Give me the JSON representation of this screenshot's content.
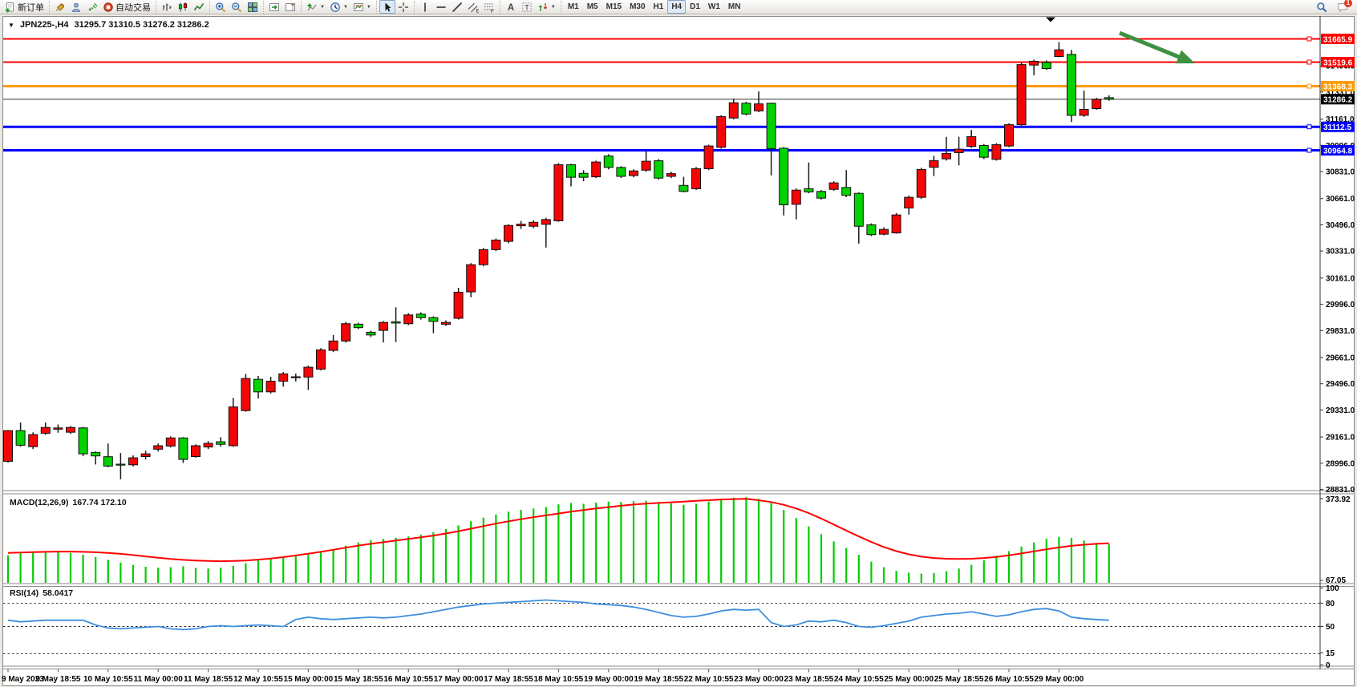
{
  "toolbar": {
    "active_timeframe": "H4",
    "notification_count": "1",
    "groups": [
      {
        "items": [
          {
            "name": "new-order-button",
            "icon": "doc-plus",
            "label": "新订单"
          }
        ]
      },
      {
        "items": [
          {
            "name": "chart-style-button",
            "icon": "bucket"
          },
          {
            "name": "profile-button",
            "icon": "profile"
          },
          {
            "name": "signals-button",
            "icon": "signal"
          },
          {
            "name": "auto-trading-button",
            "icon": "autotrade",
            "label": "自动交易"
          }
        ]
      },
      {
        "items": [
          {
            "name": "bar-chart-button",
            "icon": "bars"
          },
          {
            "name": "candle-chart-button",
            "icon": "candles"
          },
          {
            "name": "line-chart-button",
            "icon": "linechart"
          }
        ]
      },
      {
        "items": [
          {
            "name": "zoom-in-button",
            "icon": "zoom-in"
          },
          {
            "name": "zoom-out-button",
            "icon": "zoom-out"
          },
          {
            "name": "tile-windows-button",
            "icon": "tiles"
          }
        ]
      },
      {
        "items": [
          {
            "name": "auto-scroll-button",
            "icon": "autoscroll"
          },
          {
            "name": "chart-shift-button",
            "icon": "shift"
          }
        ]
      },
      {
        "items": [
          {
            "name": "indicators-button",
            "icon": "indicator",
            "dropdown": true
          },
          {
            "name": "periods-button",
            "icon": "clock",
            "dropdown": true
          },
          {
            "name": "templates-button",
            "icon": "template",
            "dropdown": true
          }
        ]
      },
      {
        "items": [
          {
            "name": "cursor-button",
            "icon": "cursor",
            "pressed": true
          },
          {
            "name": "crosshair-button",
            "icon": "crosshair"
          }
        ]
      },
      {
        "items": [
          {
            "name": "vertical-line-button",
            "icon": "vline"
          },
          {
            "name": "horizontal-line-button",
            "icon": "hline"
          },
          {
            "name": "trendline-button",
            "icon": "trend"
          },
          {
            "name": "channel-button",
            "icon": "channel"
          },
          {
            "name": "fibonacci-button",
            "icon": "fibo"
          }
        ]
      },
      {
        "items": [
          {
            "name": "text-button",
            "icon": "textA"
          },
          {
            "name": "text-label-button",
            "icon": "textT"
          },
          {
            "name": "arrows-button",
            "icon": "shapes",
            "dropdown": true
          }
        ]
      },
      {
        "timeframes": [
          "M1",
          "M5",
          "M15",
          "M30",
          "H1",
          "H4",
          "D1",
          "W1",
          "MN"
        ]
      }
    ],
    "right": [
      {
        "name": "search-button",
        "icon": "search"
      },
      {
        "name": "notifications-button",
        "icon": "comment",
        "badge": "1"
      }
    ]
  },
  "chart": {
    "collapse_arrow": "▼",
    "symbol_period": "JPN225-,H4",
    "ohlc_text": "31295.7 31310.5 31276.2 31286.2"
  },
  "chart_data": {
    "type": "candlestick",
    "symbol": "JPN225-",
    "period": "H4",
    "current_ohlc": {
      "open": 31295.7,
      "high": 31310.5,
      "low": 31276.2,
      "close": 31286.2
    },
    "colors": {
      "bull": "#f40606",
      "bear": "#02d102",
      "wick": "#1a1a1a",
      "rsi_line": "#3d8ede",
      "macd_hist": "#00cc00",
      "macd_signal": "#ff0000",
      "arrow": "#3f9142"
    },
    "price_axis_ticks": [
      "31496.0",
      "31331.0",
      "31161.0",
      "30996.0",
      "30831.0",
      "30661.0",
      "30496.0",
      "30331.0",
      "30161.0",
      "29996.0",
      "29831.0",
      "29661.0",
      "29496.0",
      "29331.0",
      "29161.0",
      "28996.0",
      "28831.0"
    ],
    "horizontal_lines": [
      {
        "price": 31665.9,
        "label": "31665.9",
        "color": "#fe0000",
        "width": 2
      },
      {
        "price": 31519.6,
        "label": "31519.6",
        "color": "#fe0000",
        "width": 2
      },
      {
        "price": 31368.3,
        "label": "31368.3",
        "color": "#ff9b00",
        "width": 3
      },
      {
        "price": 31112.5,
        "label": "31112.5",
        "color": "#0000fe",
        "width": 3
      },
      {
        "price": 30964.8,
        "label": "30964.8",
        "color": "#0000fe",
        "width": 3
      }
    ],
    "current_price_line": {
      "price": 31286.2,
      "label": "31286.2",
      "color": "#000000"
    },
    "time_labels": [
      "9 May 2023",
      "9 May 18:55",
      "10 May 10:55",
      "11 May 00:00",
      "11 May 18:55",
      "12 May 10:55",
      "15 May 00:00",
      "15 May 18:55",
      "16 May 10:55",
      "17 May 00:00",
      "17 May 18:55",
      "18 May 10:55",
      "19 May 00:00",
      "19 May 18:55",
      "22 May 10:55",
      "23 May 00:00",
      "23 May 18:55",
      "24 May 10:55",
      "25 May 00:00",
      "25 May 18:55",
      "26 May 10:55",
      "29 May 00:00"
    ],
    "candles": [
      [
        29008,
        29205,
        29000,
        29201
      ],
      [
        29201,
        29252,
        29100,
        29109
      ],
      [
        29100,
        29190,
        29085,
        29176
      ],
      [
        29184,
        29252,
        29175,
        29221
      ],
      [
        29210,
        29240,
        29188,
        29218
      ],
      [
        29191,
        29230,
        29180,
        29221
      ],
      [
        29218,
        29225,
        29040,
        29055
      ],
      [
        29064,
        29070,
        28988,
        29042
      ],
      [
        29037,
        29120,
        28970,
        28978
      ],
      [
        28990,
        29060,
        28895,
        28984
      ],
      [
        28986,
        29045,
        28975,
        29030
      ],
      [
        29038,
        29075,
        29020,
        29055
      ],
      [
        29084,
        29120,
        29070,
        29106
      ],
      [
        29104,
        29165,
        29095,
        29155
      ],
      [
        29155,
        29160,
        28998,
        29020
      ],
      [
        29038,
        29115,
        29030,
        29106
      ],
      [
        29098,
        29135,
        29085,
        29121
      ],
      [
        29131,
        29160,
        29100,
        29115
      ],
      [
        29106,
        29407,
        29100,
        29350
      ],
      [
        29327,
        29558,
        29320,
        29529
      ],
      [
        29524,
        29545,
        29403,
        29445
      ],
      [
        29445,
        29540,
        29435,
        29512
      ],
      [
        29512,
        29570,
        29478,
        29558
      ],
      [
        29535,
        29560,
        29510,
        29540
      ],
      [
        29538,
        29610,
        29457,
        29600
      ],
      [
        29588,
        29720,
        29580,
        29709
      ],
      [
        29706,
        29803,
        29695,
        29765
      ],
      [
        29765,
        29885,
        29755,
        29874
      ],
      [
        29871,
        29880,
        29840,
        29849
      ],
      [
        29820,
        29830,
        29790,
        29803
      ],
      [
        29832,
        29890,
        29756,
        29882
      ],
      [
        29885,
        29977,
        29758,
        29878
      ],
      [
        29874,
        29940,
        29865,
        29929
      ],
      [
        29934,
        29945,
        29900,
        29912
      ],
      [
        29912,
        29920,
        29814,
        29888
      ],
      [
        29870,
        29895,
        29860,
        29882
      ],
      [
        29908,
        30100,
        29900,
        30072
      ],
      [
        30074,
        30255,
        30040,
        30245
      ],
      [
        30245,
        30350,
        30235,
        30340
      ],
      [
        30340,
        30410,
        30330,
        30400
      ],
      [
        30392,
        30500,
        30380,
        30492
      ],
      [
        30490,
        30520,
        30470,
        30500
      ],
      [
        30487,
        30525,
        30475,
        30512
      ],
      [
        30499,
        30540,
        30353,
        30529
      ],
      [
        30521,
        30885,
        30515,
        30874
      ],
      [
        30874,
        30880,
        30738,
        30795
      ],
      [
        30820,
        30840,
        30770,
        30795
      ],
      [
        30798,
        30900,
        30790,
        30891
      ],
      [
        30929,
        30940,
        30845,
        30857
      ],
      [
        30857,
        30865,
        30790,
        30801
      ],
      [
        30806,
        30845,
        30795,
        30835
      ],
      [
        30840,
        30960,
        30830,
        30896
      ],
      [
        30899,
        30910,
        30780,
        30790
      ],
      [
        30801,
        30830,
        30790,
        30818
      ],
      [
        30744,
        30798,
        30700,
        30706
      ],
      [
        30723,
        30860,
        30715,
        30849
      ],
      [
        30849,
        31000,
        30840,
        30992
      ],
      [
        30984,
        31185,
        30975,
        31177
      ],
      [
        31168,
        31290,
        31160,
        31264
      ],
      [
        31261,
        31270,
        31185,
        31193
      ],
      [
        31213,
        31336,
        31205,
        31257
      ],
      [
        31261,
        31265,
        30807,
        30975
      ],
      [
        30978,
        30985,
        30555,
        30622
      ],
      [
        30625,
        30725,
        30530,
        30714
      ],
      [
        30723,
        30888,
        30695,
        30703
      ],
      [
        30706,
        30715,
        30655,
        30664
      ],
      [
        30719,
        30770,
        30710,
        30760
      ],
      [
        30731,
        30840,
        30670,
        30681
      ],
      [
        30694,
        30700,
        30378,
        30487
      ],
      [
        30496,
        30505,
        30425,
        30434
      ],
      [
        30437,
        30480,
        30430,
        30467
      ],
      [
        30445,
        30570,
        30440,
        30558
      ],
      [
        30602,
        30680,
        30560,
        30669
      ],
      [
        30669,
        30855,
        30660,
        30844
      ],
      [
        30858,
        30930,
        30803,
        30900
      ],
      [
        30911,
        31049,
        30900,
        30945
      ],
      [
        30950,
        31050,
        30870,
        30972
      ],
      [
        30989,
        31093,
        30980,
        31051
      ],
      [
        30995,
        31005,
        30910,
        30921
      ],
      [
        30908,
        31010,
        30900,
        31000
      ],
      [
        30992,
        31135,
        30985,
        31126
      ],
      [
        31126,
        31515,
        31120,
        31504
      ],
      [
        31501,
        31535,
        31437,
        31525
      ],
      [
        31518,
        31530,
        31470,
        31479
      ],
      [
        31555,
        31645,
        31550,
        31597
      ],
      [
        31568,
        31597,
        31143,
        31185
      ],
      [
        31185,
        31340,
        31175,
        31222
      ],
      [
        31227,
        31295,
        31220,
        31286
      ],
      [
        31295.7,
        31310.5,
        31276.2,
        31286.2
      ]
    ],
    "macd": {
      "title": "MACD(12,26,9)",
      "values": "167.74 172.10",
      "axis_max_label": "373.92",
      "axis_min_label": "67.05",
      "scale_max": 373.92,
      "histogram": [
        120,
        128,
        132,
        136,
        134,
        130,
        122,
        112,
        100,
        88,
        78,
        70,
        66,
        68,
        72,
        65,
        62,
        66,
        74,
        85,
        98,
        108,
        112,
        116,
        122,
        132,
        146,
        162,
        176,
        186,
        192,
        196,
        202,
        210,
        220,
        234,
        250,
        268,
        284,
        298,
        310,
        318,
        324,
        330,
        342,
        348,
        344,
        350,
        354,
        352,
        356,
        358,
        352,
        346,
        340,
        344,
        354,
        364,
        371,
        373,
        366,
        348,
        318,
        282,
        246,
        212,
        180,
        152,
        122,
        92,
        68,
        52,
        44,
        40,
        42,
        50,
        62,
        78,
        98,
        118,
        138,
        158,
        176,
        192,
        200,
        196,
        184,
        174,
        168
      ],
      "signal": [
        130,
        132,
        134,
        135,
        136,
        136,
        135,
        133,
        130,
        126,
        121,
        115,
        109,
        104,
        100,
        97,
        95,
        94,
        95,
        97,
        101,
        106,
        112,
        119,
        127,
        135,
        144,
        153,
        162,
        170,
        177,
        184,
        191,
        198,
        206,
        215,
        225,
        236,
        247,
        258,
        268,
        277,
        286,
        294,
        302,
        310,
        317,
        324,
        330,
        336,
        341,
        345,
        348,
        351,
        354,
        357,
        360,
        363,
        365,
        366,
        360,
        352,
        340,
        324,
        304,
        280,
        254,
        228,
        202,
        178,
        156,
        138,
        124,
        114,
        108,
        105,
        104,
        105,
        108,
        113,
        120,
        128,
        137,
        146,
        154,
        161,
        166,
        170,
        172
      ]
    },
    "rsi": {
      "title": "RSI(14)",
      "value": "58.0417",
      "axis_labels": [
        "100",
        "80",
        "50",
        "15",
        "0"
      ],
      "dashed_levels": [
        80,
        50,
        15
      ],
      "series": [
        58,
        56,
        57,
        58,
        58,
        58,
        58,
        52,
        48,
        47,
        48,
        49,
        50,
        47,
        46,
        47,
        50,
        51,
        50,
        51,
        52,
        51,
        50,
        59,
        62,
        60,
        59,
        60,
        61,
        62,
        61,
        62,
        64,
        66,
        69,
        72,
        75,
        77,
        79,
        80,
        81,
        82,
        83,
        84,
        83,
        82,
        81,
        79,
        78,
        77,
        75,
        72,
        68,
        64,
        62,
        63,
        66,
        70,
        72,
        71,
        72,
        55,
        50,
        52,
        57,
        56,
        58,
        55,
        50,
        49,
        51,
        54,
        57,
        62,
        64,
        66,
        67,
        69,
        66,
        63,
        65,
        69,
        72,
        73,
        70,
        62,
        60,
        59,
        58
      ]
    }
  }
}
